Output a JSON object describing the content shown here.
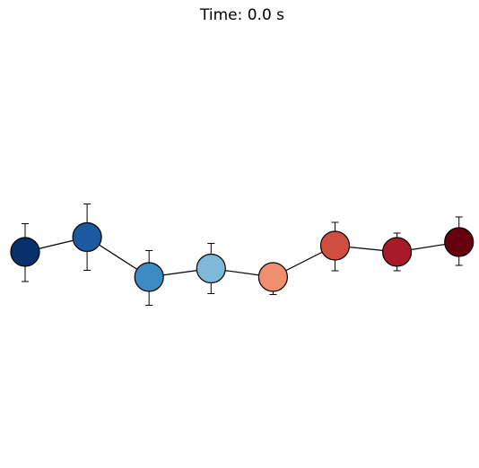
{
  "chart_data": {
    "type": "scatter",
    "title": "Time: 0.0 s",
    "xlabel": "",
    "ylabel": "",
    "axes_visible": false,
    "connected": true,
    "x": [
      0,
      1,
      2,
      3,
      4,
      5,
      6,
      7
    ],
    "y": [
      0.0,
      0.33,
      -0.56,
      -0.37,
      -0.56,
      0.14,
      0.0,
      0.22
    ],
    "error_low": [
      0.66,
      0.74,
      0.63,
      0.56,
      0.39,
      0.56,
      0.42,
      0.52
    ],
    "error_high": [
      0.63,
      0.74,
      0.59,
      0.56,
      0.12,
      0.52,
      0.42,
      0.56
    ],
    "colors": [
      "#08306b",
      "#1b5aa0",
      "#3c8cc3",
      "#7fb8d9",
      "#ef8f70",
      "#cf4f3e",
      "#a91a28",
      "#67000d"
    ],
    "marker_edge_color": "#000000",
    "line_color": "#000000"
  }
}
